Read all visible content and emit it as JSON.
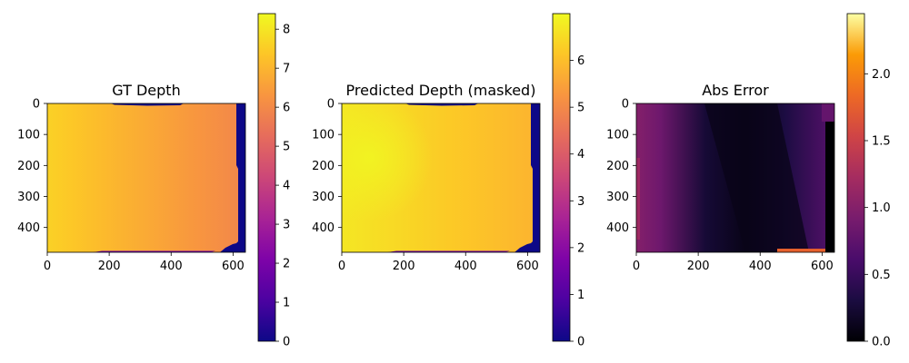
{
  "chart_data": [
    {
      "type": "heatmap",
      "title": "GT Depth",
      "colormap": "plasma",
      "x_ticks": [
        0,
        200,
        400,
        600
      ],
      "y_ticks": [
        0,
        100,
        200,
        300,
        400
      ],
      "xlim": [
        0,
        640
      ],
      "ylim": [
        480,
        0
      ],
      "colorbar": {
        "ticks": [
          0,
          1,
          2,
          3,
          4,
          5,
          6,
          7,
          8
        ],
        "range": [
          0,
          8.4
        ]
      },
      "description_values": {
        "left_edge_depth": 7.6,
        "right_edge_depth": 5.9,
        "masked_value": 0
      }
    },
    {
      "type": "heatmap",
      "title": "Predicted Depth (masked)",
      "colormap": "plasma",
      "x_ticks": [
        0,
        200,
        400,
        600
      ],
      "y_ticks": [
        0,
        100,
        200,
        300,
        400
      ],
      "xlim": [
        0,
        640
      ],
      "ylim": [
        480,
        0
      ],
      "colorbar": {
        "ticks": [
          0,
          1,
          2,
          3,
          4,
          5,
          6
        ],
        "range": [
          0,
          7.0
        ]
      },
      "description_values": {
        "left_edge_depth": 6.7,
        "right_edge_depth": 5.8,
        "masked_value": 0
      }
    },
    {
      "type": "heatmap",
      "title": "Abs Error",
      "colormap": "inferno",
      "x_ticks": [
        0,
        200,
        400,
        600
      ],
      "y_ticks": [
        0,
        100,
        200,
        300,
        400
      ],
      "xlim": [
        0,
        640
      ],
      "ylim": [
        480,
        0
      ],
      "colorbar": {
        "ticks": [
          0.0,
          0.5,
          1.0,
          1.5,
          2.0
        ],
        "tick_labels": [
          "0.0",
          "0.5",
          "1.0",
          "1.5",
          "2.0"
        ],
        "range": [
          0,
          2.45
        ]
      },
      "description_values": {
        "left_edge_error": 1.0,
        "center_error": 0.1,
        "right_edge_error": 0.7
      }
    }
  ]
}
